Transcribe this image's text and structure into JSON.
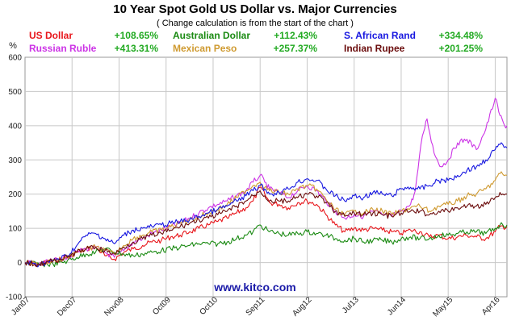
{
  "colors": {
    "us_dollar": "#e8161b",
    "australian_dollar": "#1a8a12",
    "south_african_rand": "#1717e0",
    "russian_ruble": "#cc33e6",
    "mexican_peso": "#cf9a30",
    "indian_rupee": "#6b0d0d",
    "change_text": "#22aa22",
    "grid": "#c8c8c8",
    "plot_border": "#999999",
    "watermark": "#1a1aa8"
  },
  "chart_data": {
    "type": "line",
    "title": "10 Year Spot Gold US Dollar vs. Major Currencies",
    "subtitle": "( Change calculation is from the start of the chart )",
    "ylabel": "%",
    "ylim": [
      -100,
      600
    ],
    "yticks": [
      -100,
      0,
      100,
      200,
      300,
      400,
      500,
      600
    ],
    "xlim": [
      0,
      10.25
    ],
    "xticks": [
      {
        "label": "Jan07",
        "x": 0
      },
      {
        "label": "Dec07",
        "x": 1
      },
      {
        "label": "Nov08",
        "x": 2
      },
      {
        "label": "Oct09",
        "x": 3
      },
      {
        "label": "Oct10",
        "x": 4
      },
      {
        "label": "Sep11",
        "x": 5
      },
      {
        "label": "Aug12",
        "x": 6
      },
      {
        "label": "Jul13",
        "x": 7
      },
      {
        "label": "Jun14",
        "x": 8
      },
      {
        "label": "May15",
        "x": 9
      },
      {
        "label": "Apr16",
        "x": 10
      }
    ],
    "grid": true,
    "watermark": "www.kitco.com",
    "series": [
      {
        "name": "US Dollar",
        "change": "+108.65%",
        "color": "#e8161b",
        "x": [
          0,
          0.3,
          0.6,
          0.9,
          1.1,
          1.3,
          1.5,
          1.7,
          1.9,
          2.1,
          2.3,
          2.5,
          2.7,
          2.9,
          3.1,
          3.3,
          3.5,
          3.7,
          3.9,
          4.1,
          4.3,
          4.5,
          4.7,
          4.85,
          5.0,
          5.1,
          5.2,
          5.4,
          5.6,
          5.8,
          6.0,
          6.2,
          6.4,
          6.6,
          6.8,
          7.0,
          7.2,
          7.4,
          7.6,
          7.8,
          8.0,
          8.2,
          8.4,
          8.6,
          8.8,
          9.0,
          9.2,
          9.4,
          9.6,
          9.8,
          10.0,
          10.1,
          10.25
        ],
        "y": [
          0,
          -5,
          5,
          15,
          30,
          40,
          45,
          20,
          10,
          30,
          40,
          50,
          60,
          65,
          75,
          80,
          90,
          100,
          110,
          120,
          130,
          145,
          160,
          180,
          220,
          200,
          175,
          170,
          160,
          175,
          180,
          170,
          140,
          110,
          90,
          100,
          95,
          100,
          95,
          90,
          85,
          95,
          90,
          75,
          80,
          70,
          75,
          80,
          75,
          70,
          90,
          105,
          105
        ]
      },
      {
        "name": "Russian Ruble",
        "change": "+413.31%",
        "color": "#cc33e6",
        "x": [
          0,
          0.3,
          0.6,
          0.9,
          1.1,
          1.3,
          1.5,
          1.7,
          1.9,
          2.1,
          2.3,
          2.5,
          2.7,
          2.9,
          3.1,
          3.3,
          3.5,
          3.7,
          3.9,
          4.1,
          4.3,
          4.5,
          4.7,
          4.85,
          5.0,
          5.1,
          5.2,
          5.4,
          5.6,
          5.8,
          6.0,
          6.2,
          6.4,
          6.6,
          6.8,
          7.0,
          7.2,
          7.4,
          7.6,
          7.8,
          8.0,
          8.2,
          8.3,
          8.45,
          8.55,
          8.7,
          8.85,
          9.0,
          9.2,
          9.4,
          9.6,
          9.8,
          10.0,
          10.1,
          10.2,
          10.25
        ],
        "y": [
          0,
          -5,
          5,
          15,
          30,
          40,
          45,
          30,
          15,
          35,
          60,
          70,
          85,
          95,
          105,
          115,
          130,
          145,
          160,
          170,
          180,
          195,
          210,
          235,
          255,
          235,
          215,
          205,
          190,
          210,
          225,
          210,
          180,
          150,
          130,
          140,
          135,
          150,
          140,
          135,
          150,
          170,
          210,
          370,
          420,
          320,
          280,
          300,
          350,
          360,
          330,
          390,
          480,
          430,
          400,
          400
        ]
      },
      {
        "name": "Australian Dollar",
        "change": "+112.43%",
        "color": "#1a8a12",
        "x": [
          0,
          0.3,
          0.6,
          0.9,
          1.1,
          1.3,
          1.5,
          1.7,
          1.9,
          2.1,
          2.3,
          2.5,
          2.7,
          2.9,
          3.1,
          3.3,
          3.5,
          3.7,
          3.9,
          4.1,
          4.3,
          4.5,
          4.7,
          4.85,
          5.0,
          5.1,
          5.2,
          5.4,
          5.6,
          5.8,
          6.0,
          6.2,
          6.4,
          6.6,
          6.8,
          7.0,
          7.2,
          7.4,
          7.6,
          7.8,
          8.0,
          8.2,
          8.4,
          8.6,
          8.8,
          9.0,
          9.2,
          9.4,
          9.6,
          9.8,
          10.0,
          10.1,
          10.25
        ],
        "y": [
          0,
          -5,
          -5,
          5,
          15,
          25,
          30,
          40,
          30,
          25,
          20,
          25,
          30,
          35,
          40,
          45,
          50,
          55,
          55,
          55,
          60,
          70,
          80,
          90,
          110,
          100,
          90,
          85,
          80,
          85,
          90,
          85,
          80,
          70,
          65,
          70,
          60,
          65,
          65,
          60,
          70,
          75,
          70,
          70,
          80,
          80,
          85,
          90,
          90,
          85,
          100,
          110,
          110
        ]
      },
      {
        "name": "Mexican Peso",
        "change": "+257.37%",
        "color": "#cf9a30",
        "x": [
          0,
          0.3,
          0.6,
          0.9,
          1.1,
          1.3,
          1.5,
          1.7,
          1.9,
          2.1,
          2.3,
          2.5,
          2.7,
          2.9,
          3.1,
          3.3,
          3.5,
          3.7,
          3.9,
          4.1,
          4.3,
          4.5,
          4.7,
          4.85,
          5.0,
          5.1,
          5.2,
          5.4,
          5.6,
          5.8,
          6.0,
          6.2,
          6.4,
          6.6,
          6.8,
          7.0,
          7.2,
          7.4,
          7.6,
          7.8,
          8.0,
          8.2,
          8.4,
          8.6,
          8.8,
          9.0,
          9.2,
          9.4,
          9.6,
          9.8,
          10.0,
          10.1,
          10.25
        ],
        "y": [
          0,
          -5,
          5,
          15,
          30,
          40,
          45,
          35,
          25,
          50,
          70,
          80,
          90,
          95,
          105,
          115,
          125,
          135,
          145,
          155,
          170,
          190,
          210,
          225,
          235,
          220,
          210,
          205,
          200,
          215,
          225,
          215,
          185,
          155,
          140,
          150,
          145,
          155,
          150,
          140,
          150,
          160,
          165,
          150,
          165,
          170,
          180,
          195,
          200,
          215,
          240,
          260,
          255
        ]
      },
      {
        "name": "S. African Rand",
        "change": "+334.48%",
        "color": "#1717e0",
        "x": [
          0,
          0.3,
          0.6,
          0.9,
          1.1,
          1.3,
          1.5,
          1.7,
          1.9,
          2.1,
          2.3,
          2.5,
          2.7,
          2.9,
          3.1,
          3.3,
          3.5,
          3.7,
          3.9,
          4.1,
          4.3,
          4.5,
          4.7,
          4.85,
          5.0,
          5.1,
          5.2,
          5.4,
          5.6,
          5.8,
          6.0,
          6.2,
          6.4,
          6.6,
          6.8,
          7.0,
          7.2,
          7.4,
          7.6,
          7.8,
          8.0,
          8.2,
          8.4,
          8.6,
          8.8,
          9.0,
          9.2,
          9.4,
          9.6,
          9.8,
          10.0,
          10.1,
          10.25
        ],
        "y": [
          0,
          -5,
          5,
          20,
          50,
          80,
          85,
          70,
          55,
          80,
          95,
          100,
          105,
          110,
          115,
          120,
          125,
          135,
          145,
          155,
          165,
          180,
          195,
          210,
          225,
          215,
          200,
          205,
          215,
          235,
          245,
          240,
          215,
          195,
          180,
          195,
          190,
          205,
          200,
          195,
          215,
          220,
          215,
          225,
          240,
          240,
          255,
          270,
          280,
          300,
          330,
          345,
          335
        ]
      },
      {
        "name": "Indian Rupee",
        "change": "+201.25%",
        "color": "#6b0d0d",
        "x": [
          0,
          0.3,
          0.6,
          0.9,
          1.1,
          1.3,
          1.5,
          1.7,
          1.9,
          2.1,
          2.3,
          2.5,
          2.7,
          2.9,
          3.1,
          3.3,
          3.5,
          3.7,
          3.9,
          4.1,
          4.3,
          4.5,
          4.7,
          4.85,
          5.0,
          5.1,
          5.2,
          5.4,
          5.6,
          5.8,
          6.0,
          6.2,
          6.4,
          6.6,
          6.8,
          7.0,
          7.2,
          7.4,
          7.6,
          7.8,
          8.0,
          8.2,
          8.4,
          8.6,
          8.8,
          9.0,
          9.2,
          9.4,
          9.6,
          9.8,
          10.0,
          10.1,
          10.25
        ],
        "y": [
          0,
          -5,
          5,
          15,
          30,
          40,
          45,
          35,
          25,
          45,
          60,
          70,
          80,
          85,
          95,
          105,
          115,
          125,
          130,
          140,
          150,
          165,
          180,
          195,
          210,
          195,
          180,
          180,
          180,
          190,
          200,
          195,
          175,
          150,
          135,
          145,
          140,
          145,
          140,
          135,
          145,
          150,
          150,
          140,
          150,
          150,
          160,
          165,
          165,
          170,
          190,
          205,
          200
        ]
      }
    ]
  }
}
